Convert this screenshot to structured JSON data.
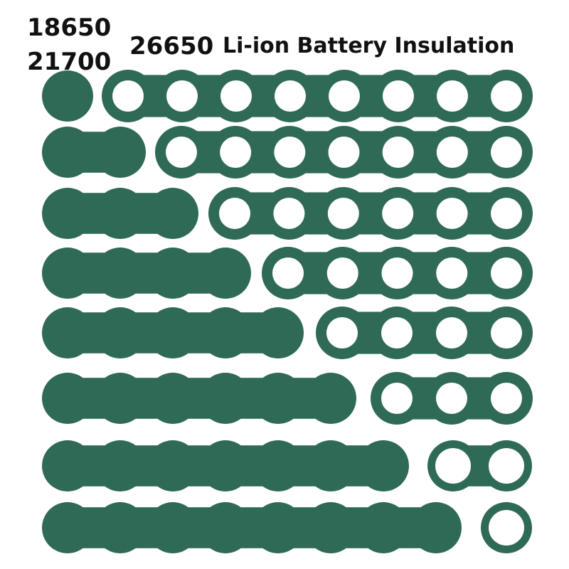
{
  "header": {
    "sizes": [
      "18650",
      "21700",
      "26650"
    ],
    "title": "Li-ion Battery Insulation"
  }
}
